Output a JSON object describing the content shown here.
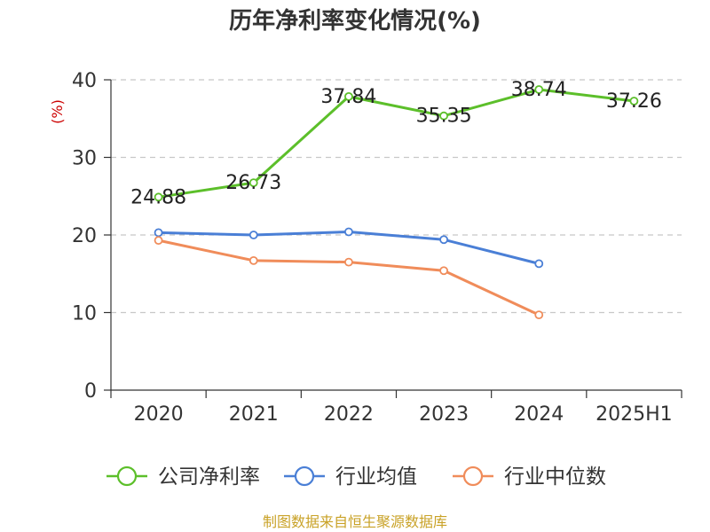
{
  "chart_data": {
    "type": "line",
    "title": "历年净利率变化情况(%)",
    "ylabel": "(%)",
    "ylim": [
      0,
      40
    ],
    "yticks": [
      0,
      10,
      20,
      30,
      40
    ],
    "categories": [
      "2020",
      "2021",
      "2022",
      "2023",
      "2024",
      "2025H1"
    ],
    "grid": true,
    "legend_position": "bottom",
    "series": [
      {
        "name": "公司净利率",
        "color": "#5cbf2a",
        "values": [
          24.88,
          26.73,
          37.84,
          35.35,
          38.74,
          37.26
        ],
        "labels": [
          "24.88",
          "26.73",
          "37.84",
          "35.35",
          "38.74",
          "37.26"
        ]
      },
      {
        "name": "行业均值",
        "color": "#4a7fd6",
        "values": [
          20.3,
          20.0,
          20.4,
          19.4,
          16.3,
          null
        ]
      },
      {
        "name": "行业中位数",
        "color": "#f08c5a",
        "values": [
          19.3,
          16.7,
          16.5,
          15.4,
          9.7,
          null
        ]
      }
    ]
  },
  "colors": {
    "ylabel": "#cc0000",
    "source": "#c9a227",
    "grid": "#c8c8c8",
    "axis": "#333333"
  },
  "source": "制图数据来自恒生聚源数据库"
}
